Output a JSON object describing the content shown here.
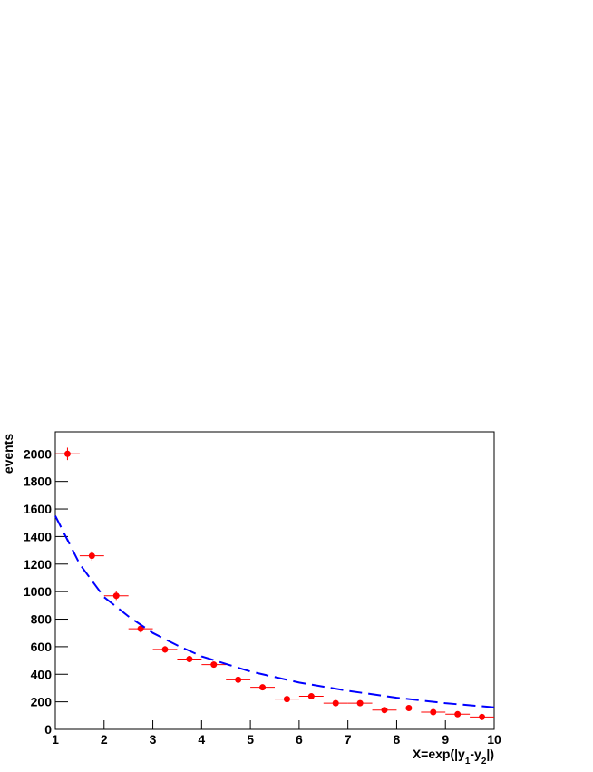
{
  "chart_data": {
    "type": "scatter",
    "ylabel": "events",
    "xlabel": [
      "X=exp(|y",
      "1",
      "-y",
      "2",
      "|)"
    ],
    "xlim": [
      1,
      10
    ],
    "xticks": [
      1,
      2,
      3,
      4,
      5,
      6,
      7,
      8,
      9,
      10
    ],
    "ylim": [
      0,
      2160
    ],
    "yticks": [
      0,
      200,
      400,
      600,
      800,
      1000,
      1200,
      1400,
      1600,
      1800,
      2000
    ],
    "series": [
      {
        "kind": "points",
        "color": "#ff0000",
        "x": [
          1.25,
          1.75,
          2.25,
          2.75,
          3.25,
          3.75,
          4.25,
          4.75,
          5.25,
          5.75,
          6.25,
          6.75,
          7.25,
          7.75,
          8.25,
          8.75,
          9.25,
          9.75
        ],
        "xerr": [
          0.25,
          0.25,
          0.25,
          0.25,
          0.25,
          0.25,
          0.25,
          0.25,
          0.25,
          0.25,
          0.25,
          0.25,
          0.25,
          0.25,
          0.25,
          0.25,
          0.25,
          0.25
        ],
        "values": [
          2000,
          1260,
          970,
          730,
          580,
          510,
          470,
          360,
          305,
          220,
          240,
          190,
          190,
          140,
          155,
          125,
          110,
          90
        ],
        "errors": [
          45,
          35,
          31,
          27,
          24,
          23,
          22,
          19,
          17,
          15,
          15,
          14,
          14,
          12,
          12,
          11,
          10,
          9
        ]
      },
      {
        "kind": "curve",
        "color": "#0000ff",
        "x": [
          1,
          1.5,
          2,
          2.5,
          3,
          3.5,
          4,
          5,
          6,
          7,
          8,
          9,
          10
        ],
        "values": [
          1550,
          1200,
          960,
          820,
          700,
          610,
          530,
          420,
          340,
          280,
          230,
          190,
          160
        ]
      }
    ]
  }
}
